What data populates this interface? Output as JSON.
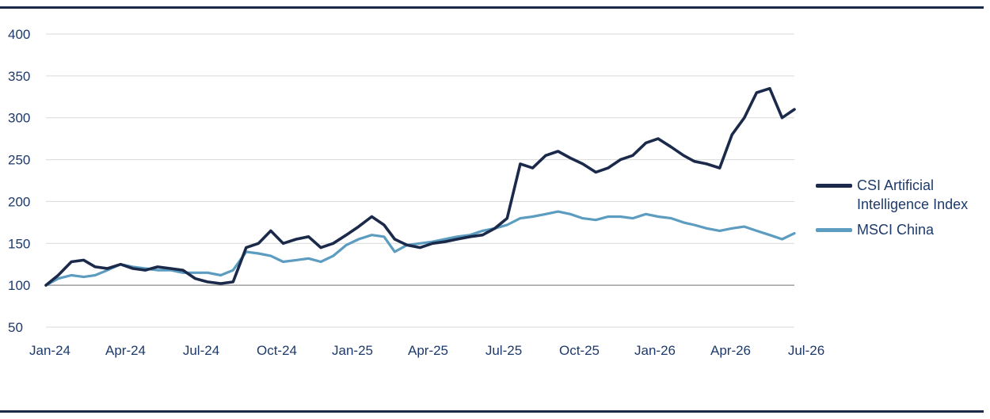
{
  "chart_data": {
    "type": "line",
    "title": "",
    "xlabel": "",
    "ylabel": "",
    "ylim": [
      50,
      400
    ],
    "yticks": [
      50,
      100,
      150,
      200,
      250,
      300,
      350,
      400
    ],
    "baseline": 100,
    "x_tick_labels": [
      "Jan-24",
      "Apr-24",
      "Jul-24",
      "Oct-24",
      "Jan-25",
      "Apr-25",
      "Jul-25",
      "Oct-25",
      "Jan-26",
      "Apr-26",
      "Jul-26"
    ],
    "legend_position": "right",
    "x": [
      "2024-01-01",
      "2024-01-16",
      "2024-02-01",
      "2024-02-16",
      "2024-03-01",
      "2024-03-16",
      "2024-04-01",
      "2024-04-16",
      "2024-05-01",
      "2024-05-16",
      "2024-06-01",
      "2024-06-16",
      "2024-07-01",
      "2024-07-16",
      "2024-08-01",
      "2024-08-16",
      "2024-09-01",
      "2024-09-16",
      "2024-10-01",
      "2024-10-16",
      "2024-11-01",
      "2024-11-16",
      "2024-12-01",
      "2024-12-16",
      "2025-01-01",
      "2025-01-16",
      "2025-02-01",
      "2025-02-16",
      "2025-03-01",
      "2025-03-16",
      "2025-04-01",
      "2025-04-16",
      "2025-05-01",
      "2025-05-16",
      "2025-06-01",
      "2025-06-16",
      "2025-07-01",
      "2025-07-16",
      "2025-08-01",
      "2025-08-16",
      "2025-09-01",
      "2025-09-16",
      "2025-10-01",
      "2025-10-16",
      "2025-11-01",
      "2025-11-16",
      "2025-12-01",
      "2025-12-16",
      "2026-01-01",
      "2026-01-16",
      "2026-02-01",
      "2026-02-16",
      "2026-03-01",
      "2026-03-16",
      "2026-04-01",
      "2026-04-16",
      "2026-05-01",
      "2026-05-16",
      "2026-06-01",
      "2026-06-16",
      "2026-07-01"
    ],
    "series": [
      {
        "name": "CSI Artificial Intelligence Index",
        "color": "#1b2a4a",
        "values": [
          100,
          112,
          128,
          130,
          122,
          120,
          125,
          120,
          118,
          122,
          120,
          118,
          108,
          104,
          102,
          104,
          145,
          150,
          165,
          150,
          155,
          158,
          145,
          150,
          160,
          170,
          182,
          172,
          155,
          148,
          145,
          150,
          152,
          155,
          158,
          160,
          168,
          180,
          245,
          240,
          255,
          260,
          252,
          245,
          235,
          240,
          250,
          255,
          270,
          275,
          265,
          255,
          248,
          245,
          240,
          280,
          300,
          330,
          335,
          300,
          310
        ]
      },
      {
        "name": "MSCI China",
        "color": "#5b9cc0",
        "values": [
          100,
          108,
          112,
          110,
          112,
          118,
          125,
          122,
          120,
          118,
          118,
          115,
          115,
          115,
          112,
          118,
          140,
          138,
          135,
          128,
          130,
          132,
          128,
          135,
          148,
          155,
          160,
          158,
          140,
          148,
          150,
          152,
          155,
          158,
          160,
          165,
          168,
          172,
          180,
          182,
          185,
          188,
          185,
          180,
          178,
          182,
          182,
          180,
          185,
          182,
          180,
          175,
          172,
          168,
          165,
          168,
          170,
          165,
          160,
          155,
          162
        ]
      }
    ]
  }
}
